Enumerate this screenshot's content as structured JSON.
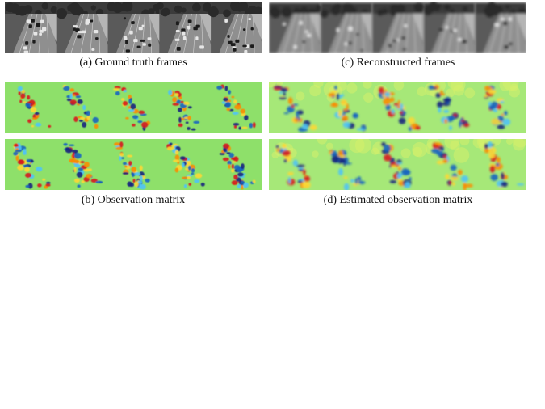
{
  "captions": {
    "a": "(a) Ground truth frames",
    "b": "(b) Observation matrix",
    "c": "(c) Reconstructed frames",
    "d": "(d) Estimated observation matrix"
  },
  "colors": {
    "background_green": "#8ee06a",
    "positive_high": "#d7191c",
    "positive_mid": "#fdae61",
    "negative_mid": "#4fc3f7",
    "negative_high": "#1a237e",
    "grayscale_road": "#7a7a7a"
  }
}
